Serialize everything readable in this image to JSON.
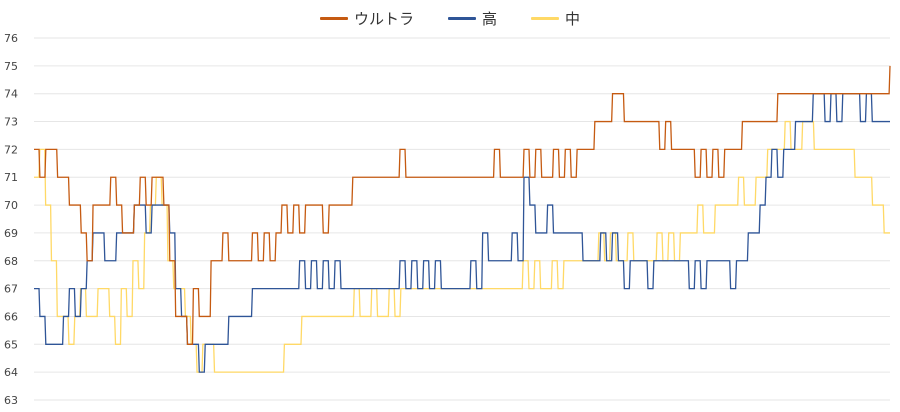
{
  "chart_data": {
    "type": "line",
    "title": "",
    "xlabel": "",
    "ylabel": "",
    "ylim": [
      63,
      76
    ],
    "yticks": [
      63,
      64,
      65,
      66,
      67,
      68,
      69,
      70,
      71,
      72,
      73,
      74,
      75,
      76
    ],
    "grid": true,
    "legend_position": "top-center",
    "series": [
      {
        "name": "ウルトラ",
        "color": "#C55A11",
        "values": [
          72,
          71,
          72,
          72,
          71,
          71,
          70,
          70,
          69,
          68,
          70,
          70,
          70,
          71,
          70,
          69,
          69,
          70,
          71,
          70,
          71,
          71,
          70,
          68,
          66,
          66,
          65,
          67,
          66,
          66,
          68,
          68,
          69,
          68,
          68,
          68,
          68,
          69,
          68,
          69,
          68,
          69,
          70,
          69,
          70,
          69,
          70,
          70,
          70,
          69,
          70,
          70,
          70,
          70,
          71,
          71,
          71,
          71,
          71,
          71,
          71,
          71,
          72,
          71,
          71,
          71,
          71,
          71,
          71,
          71,
          71,
          71,
          71,
          71,
          71,
          71,
          71,
          71,
          72,
          71,
          71,
          71,
          71,
          72,
          71,
          72,
          71,
          71,
          72,
          71,
          72,
          71,
          72,
          72,
          72,
          73,
          73,
          73,
          74,
          74,
          73,
          73,
          73,
          73,
          73,
          73,
          72,
          73,
          72,
          72,
          72,
          72,
          71,
          72,
          71,
          72,
          71,
          72,
          72,
          72,
          73,
          73,
          73,
          73,
          73,
          73,
          74,
          74,
          74,
          74,
          74,
          74,
          74,
          74,
          74,
          74,
          74,
          74,
          74,
          74,
          74,
          74,
          74,
          74,
          74,
          75
        ]
      },
      {
        "name": "高",
        "color": "#2F5597",
        "values": [
          67,
          66,
          65,
          65,
          65,
          66,
          67,
          66,
          67,
          68,
          69,
          69,
          68,
          68,
          69,
          69,
          69,
          70,
          70,
          69,
          70,
          70,
          70,
          69,
          67,
          66,
          65,
          65,
          64,
          65,
          65,
          65,
          65,
          66,
          66,
          66,
          66,
          67,
          67,
          67,
          67,
          67,
          67,
          67,
          67,
          68,
          67,
          68,
          67,
          68,
          67,
          68,
          67,
          67,
          67,
          67,
          67,
          67,
          67,
          67,
          67,
          67,
          68,
          67,
          68,
          67,
          68,
          67,
          68,
          67,
          67,
          67,
          67,
          67,
          68,
          67,
          69,
          68,
          68,
          68,
          68,
          69,
          68,
          71,
          70,
          69,
          69,
          70,
          69,
          69,
          69,
          69,
          69,
          68,
          68,
          68,
          69,
          68,
          69,
          68,
          67,
          68,
          68,
          68,
          67,
          68,
          68,
          68,
          68,
          68,
          68,
          67,
          68,
          67,
          68,
          68,
          68,
          68,
          67,
          68,
          68,
          69,
          69,
          70,
          71,
          72,
          71,
          72,
          72,
          73,
          73,
          73,
          74,
          74,
          73,
          74,
          73,
          74,
          74,
          74,
          73,
          74,
          73,
          73,
          73,
          73
        ]
      },
      {
        "name": "中",
        "color": "#FFD966",
        "values": [
          71,
          72,
          70,
          68,
          66,
          66,
          65,
          66,
          67,
          66,
          66,
          67,
          67,
          66,
          65,
          67,
          66,
          68,
          67,
          69,
          70,
          71,
          70,
          68,
          67,
          67,
          66,
          65,
          64,
          65,
          65,
          64,
          64,
          64,
          64,
          64,
          64,
          64,
          64,
          64,
          64,
          64,
          64,
          65,
          65,
          65,
          66,
          66,
          66,
          66,
          66,
          66,
          66,
          66,
          66,
          67,
          66,
          66,
          67,
          66,
          66,
          67,
          66,
          67,
          67,
          67,
          67,
          67,
          67,
          67,
          67,
          67,
          67,
          67,
          67,
          67,
          67,
          67,
          67,
          67,
          67,
          67,
          67,
          67,
          68,
          67,
          68,
          67,
          67,
          68,
          67,
          68,
          68,
          68,
          68,
          68,
          68,
          69,
          68,
          69,
          68,
          68,
          69,
          68,
          68,
          68,
          68,
          69,
          68,
          69,
          68,
          69,
          69,
          69,
          70,
          69,
          69,
          70,
          70,
          70,
          70,
          71,
          70,
          70,
          71,
          71,
          72,
          72,
          72,
          73,
          72,
          72,
          73,
          73,
          72,
          72,
          72,
          72,
          72,
          72,
          72,
          71,
          71,
          71,
          70,
          70,
          69,
          69
        ]
      }
    ]
  }
}
